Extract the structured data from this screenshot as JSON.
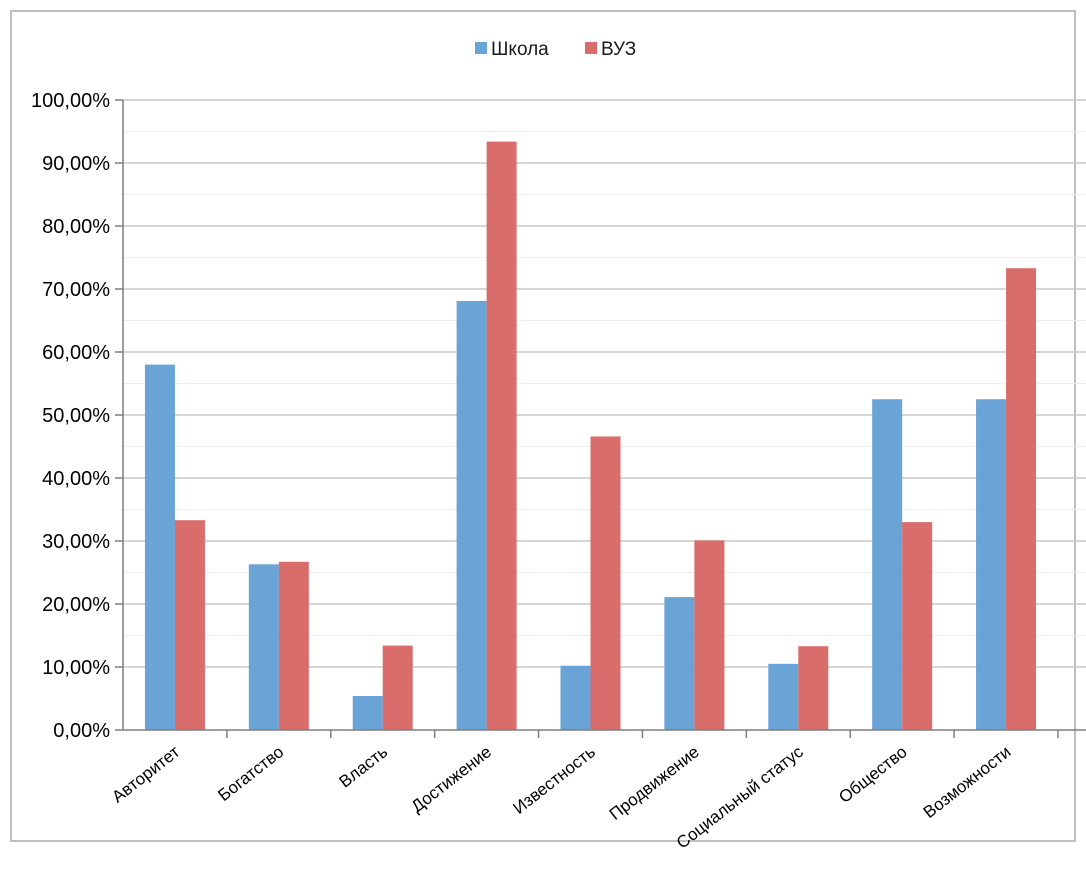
{
  "chart_data": {
    "type": "bar",
    "categories": [
      "Авторитет",
      "Богатство",
      "Власть",
      "Достижение",
      "Известность",
      "Продвижение",
      "Социальный статус",
      "Общество",
      "Возможности"
    ],
    "series": [
      {
        "name": "Школа",
        "color": "#6aa3d6",
        "values": [
          58.0,
          26.3,
          5.4,
          68.1,
          10.2,
          21.1,
          10.5,
          52.5,
          52.5
        ]
      },
      {
        "name": "ВУЗ",
        "color": "#d96d6b",
        "values": [
          33.3,
          26.7,
          13.4,
          93.4,
          46.6,
          30.1,
          13.3,
          33.0,
          73.3
        ]
      }
    ],
    "yticks": [
      "0,00%",
      "10,00%",
      "20,00%",
      "30,00%",
      "40,00%",
      "50,00%",
      "60,00%",
      "70,00%",
      "80,00%",
      "90,00%",
      "100,00%"
    ],
    "ylim": [
      0,
      100
    ],
    "grid": true,
    "legend_position": "top-center",
    "title": "",
    "xlabel": "",
    "ylabel": ""
  }
}
